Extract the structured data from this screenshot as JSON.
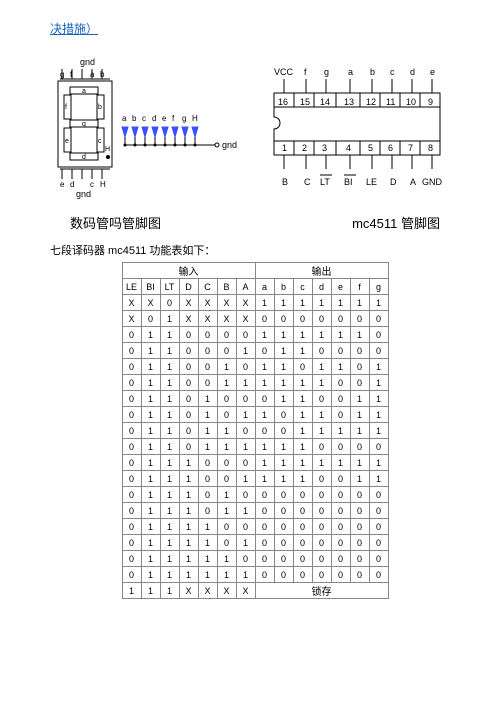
{
  "header": "决措施）",
  "left_diagram_caption": "数码管吗管脚图",
  "right_diagram_caption": "mc4511 管脚图",
  "subtitle": "七段译码器 mc4511 功能表如下：",
  "seg7": {
    "top_label": "gnd",
    "top_pins": [
      "g",
      "f",
      "",
      "a",
      "b"
    ],
    "bottom_label": "gnd",
    "bottom_pins": [
      "e",
      "d",
      "",
      "c",
      "H"
    ],
    "segments": [
      "a",
      "b",
      "c",
      "d",
      "e",
      "f",
      "g"
    ],
    "led_labels": [
      "a",
      "b",
      "c",
      "d",
      "e",
      "f",
      "g",
      "H"
    ],
    "gnd_out": "gnd",
    "colors": {
      "segment_fill": "#fff",
      "segment_stroke": "#000",
      "led": "#3c50ff",
      "wire_dot": "#000"
    }
  },
  "chip": {
    "top_pins": [
      "16",
      "15",
      "14",
      "13",
      "12",
      "11",
      "10",
      "9"
    ],
    "top_labels": [
      "VCC",
      "f",
      "g",
      "a",
      "b",
      "c",
      "d",
      "e"
    ],
    "bottom_pins": [
      "1",
      "2",
      "3",
      "4",
      "5",
      "6",
      "7",
      "8"
    ],
    "bottom_labels": [
      "B",
      "C",
      "LT",
      "BI",
      "LE",
      "D",
      "A",
      "GND"
    ],
    "stroke": "#000"
  },
  "table": {
    "group_in": "输入",
    "group_out": "输出",
    "in_cols": [
      "LE",
      "BI",
      "LT",
      "D",
      "C",
      "B",
      "A"
    ],
    "out_cols": [
      "a",
      "b",
      "c",
      "d",
      "e",
      "f",
      "g"
    ],
    "latch": "锁存",
    "rows": [
      [
        "X",
        "X",
        "0",
        "X",
        "X",
        "X",
        "X",
        "1",
        "1",
        "1",
        "1",
        "1",
        "1",
        "1"
      ],
      [
        "X",
        "0",
        "1",
        "X",
        "X",
        "X",
        "X",
        "0",
        "0",
        "0",
        "0",
        "0",
        "0",
        "0"
      ],
      [
        "0",
        "1",
        "1",
        "0",
        "0",
        "0",
        "0",
        "1",
        "1",
        "1",
        "1",
        "1",
        "1",
        "0"
      ],
      [
        "0",
        "1",
        "1",
        "0",
        "0",
        "0",
        "1",
        "0",
        "1",
        "1",
        "0",
        "0",
        "0",
        "0"
      ],
      [
        "0",
        "1",
        "1",
        "0",
        "0",
        "1",
        "0",
        "1",
        "1",
        "0",
        "1",
        "1",
        "0",
        "1"
      ],
      [
        "0",
        "1",
        "1",
        "0",
        "0",
        "1",
        "1",
        "1",
        "1",
        "1",
        "1",
        "0",
        "0",
        "1"
      ],
      [
        "0",
        "1",
        "1",
        "0",
        "1",
        "0",
        "0",
        "0",
        "1",
        "1",
        "0",
        "0",
        "1",
        "1"
      ],
      [
        "0",
        "1",
        "1",
        "0",
        "1",
        "0",
        "1",
        "1",
        "0",
        "1",
        "1",
        "0",
        "1",
        "1"
      ],
      [
        "0",
        "1",
        "1",
        "0",
        "1",
        "1",
        "0",
        "0",
        "0",
        "1",
        "1",
        "1",
        "1",
        "1"
      ],
      [
        "0",
        "1",
        "1",
        "0",
        "1",
        "1",
        "1",
        "1",
        "1",
        "1",
        "0",
        "0",
        "0",
        "0"
      ],
      [
        "0",
        "1",
        "1",
        "1",
        "0",
        "0",
        "0",
        "1",
        "1",
        "1",
        "1",
        "1",
        "1",
        "1"
      ],
      [
        "0",
        "1",
        "1",
        "1",
        "0",
        "0",
        "1",
        "1",
        "1",
        "1",
        "0",
        "0",
        "1",
        "1"
      ],
      [
        "0",
        "1",
        "1",
        "1",
        "0",
        "1",
        "0",
        "0",
        "0",
        "0",
        "0",
        "0",
        "0",
        "0"
      ],
      [
        "0",
        "1",
        "1",
        "1",
        "0",
        "1",
        "1",
        "0",
        "0",
        "0",
        "0",
        "0",
        "0",
        "0"
      ],
      [
        "0",
        "1",
        "1",
        "1",
        "1",
        "0",
        "0",
        "0",
        "0",
        "0",
        "0",
        "0",
        "0",
        "0"
      ],
      [
        "0",
        "1",
        "1",
        "1",
        "1",
        "0",
        "1",
        "0",
        "0",
        "0",
        "0",
        "0",
        "0",
        "0"
      ],
      [
        "0",
        "1",
        "1",
        "1",
        "1",
        "1",
        "0",
        "0",
        "0",
        "0",
        "0",
        "0",
        "0",
        "0"
      ],
      [
        "0",
        "1",
        "1",
        "1",
        "1",
        "1",
        "1",
        "0",
        "0",
        "0",
        "0",
        "0",
        "0",
        "0"
      ]
    ],
    "last_row_in": [
      "1",
      "1",
      "1",
      "X",
      "X",
      "X",
      "X"
    ]
  }
}
